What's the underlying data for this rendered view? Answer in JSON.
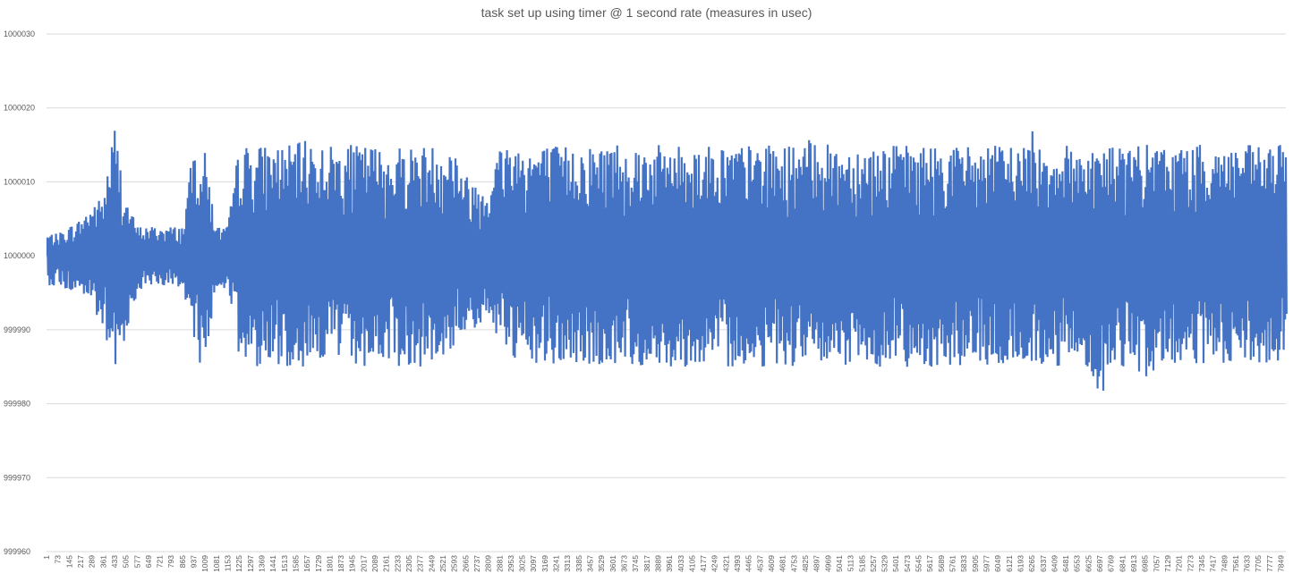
{
  "chart_data": {
    "type": "line",
    "title": "task set up using timer @ 1 second rate (measures in usec)",
    "xlabel": "",
    "ylabel": "",
    "ylim": [
      999960,
      1000030
    ],
    "yticks": [
      999960,
      999970,
      999980,
      999990,
      1000000,
      1000010,
      1000020,
      1000030
    ],
    "y_gridlines": true,
    "legend": "none",
    "line_color": "#4472C4",
    "x_tick_labels": [
      "1",
      "73",
      "145",
      "217",
      "289",
      "361",
      "433",
      "505",
      "577",
      "649",
      "721",
      "793",
      "865",
      "937",
      "1009",
      "1081",
      "1153",
      "1225",
      "1297",
      "1369",
      "1441",
      "1513",
      "1585",
      "1657",
      "1729",
      "1801",
      "1873",
      "1945",
      "2017",
      "2089",
      "2161",
      "2233",
      "2305",
      "2377",
      "2449",
      "2521",
      "2593",
      "2665",
      "2737",
      "2809",
      "2881",
      "2953",
      "3025",
      "3097",
      "3169",
      "3241",
      "3313",
      "3385",
      "3457",
      "3529",
      "3601",
      "3673",
      "3745",
      "3817",
      "3889",
      "3961",
      "4033",
      "4105",
      "4177",
      "4249",
      "4321",
      "4393",
      "4465",
      "4537",
      "4609",
      "4681",
      "4753",
      "4825",
      "4897",
      "4969",
      "5041",
      "5113",
      "5185",
      "5257",
      "5329",
      "5401",
      "5473",
      "5545",
      "5617",
      "5689",
      "5761",
      "5833",
      "5905",
      "5977",
      "6049",
      "6121",
      "6193",
      "6265",
      "6337",
      "6409",
      "6481",
      "6553",
      "6625",
      "6697",
      "6769",
      "6841",
      "6913",
      "6985",
      "7057",
      "7129",
      "7201",
      "7273",
      "7345",
      "7417",
      "7489",
      "7561",
      "7633",
      "7705",
      "7777",
      "7849"
    ],
    "x": [
      1,
      73,
      145,
      217,
      289,
      361,
      433,
      505,
      577,
      649,
      721,
      793,
      865,
      937,
      1009,
      1081,
      1153,
      1225,
      1297,
      1369,
      1441,
      1513,
      1585,
      1657,
      1729,
      1801,
      1873,
      1945,
      2017,
      2089,
      2161,
      2233,
      2305,
      2377,
      2449,
      2521,
      2593,
      2665,
      2737,
      2809,
      2881,
      2953,
      3025,
      3097,
      3169,
      3241,
      3313,
      3385,
      3457,
      3529,
      3601,
      3673,
      3745,
      3817,
      3889,
      3961,
      4033,
      4105,
      4177,
      4249,
      4321,
      4393,
      4465,
      4537,
      4609,
      4681,
      4753,
      4825,
      4897,
      4969,
      5041,
      5113,
      5185,
      5257,
      5329,
      5401,
      5473,
      5545,
      5617,
      5689,
      5761,
      5833,
      5905,
      5977,
      6049,
      6121,
      6193,
      6265,
      6337,
      6409,
      6481,
      6553,
      6625,
      6697,
      6769,
      6841,
      6913,
      6985,
      7057,
      7129,
      7201,
      7273,
      7345,
      7417,
      7489,
      7561,
      7633,
      7705,
      7777,
      7849
    ],
    "series": [
      {
        "y_max": [
          1000003,
          1000003,
          1000004,
          1000005,
          1000007,
          1000008,
          1000018,
          1000008,
          1000004,
          1000004,
          1000004,
          1000004,
          1000004,
          1000015,
          1000014,
          1000004,
          1000004,
          1000015,
          1000015,
          1000015,
          1000015,
          1000015,
          1000015,
          1000016,
          1000015,
          1000015,
          1000015,
          1000015,
          1000015,
          1000015,
          1000014,
          1000015,
          1000015,
          1000015,
          1000015,
          1000015,
          1000015,
          1000011,
          1000010,
          1000010,
          1000015,
          1000016,
          1000015,
          1000015,
          1000015,
          1000015,
          1000015,
          1000015,
          1000015,
          1000015,
          1000016,
          1000015,
          1000015,
          1000015,
          1000015,
          1000015,
          1000015,
          1000015,
          1000015,
          1000015,
          1000015,
          1000015,
          1000015,
          1000015,
          1000015,
          1000015,
          1000015,
          1000015,
          1000017,
          1000015,
          1000015,
          1000015,
          1000015,
          1000015,
          1000015,
          1000015,
          1000015,
          1000015,
          1000015,
          1000015,
          1000015,
          1000015,
          1000015,
          1000015,
          1000015,
          1000015,
          1000015,
          1000017,
          1000015,
          1000015,
          1000015,
          1000015,
          1000015,
          1000015,
          1000015,
          1000015,
          1000015,
          1000015,
          1000015,
          1000015,
          1000015,
          1000015,
          1000015,
          1000015,
          1000015,
          1000015,
          1000015,
          1000015,
          1000015,
          1000015
        ],
        "y_min": [
          999996,
          999996,
          999995,
          999995,
          999993,
          999989,
          999983,
          999990,
          999995,
          999996,
          999996,
          999996,
          999995,
          999985,
          999986,
          999995,
          999996,
          999985,
          999985,
          999985,
          999985,
          999985,
          999985,
          999985,
          999985,
          999988,
          999985,
          999985,
          999985,
          999985,
          999986,
          999985,
          999985,
          999985,
          999985,
          999985,
          999988,
          999990,
          999990,
          999990,
          999989,
          999985,
          999985,
          999985,
          999985,
          999985,
          999985,
          999985,
          999985,
          999985,
          999985,
          999985,
          999985,
          999985,
          999985,
          999985,
          999985,
          999985,
          999985,
          999985,
          999985,
          999985,
          999985,
          999985,
          999985,
          999985,
          999985,
          999985,
          999985,
          999985,
          999985,
          999985,
          999985,
          999985,
          999985,
          999985,
          999985,
          999985,
          999985,
          999985,
          999985,
          999985,
          999985,
          999985,
          999985,
          999985,
          999985,
          999985,
          999985,
          999985,
          999985,
          999985,
          999985,
          999980,
          999985,
          999985,
          999985,
          999983,
          999985,
          999985,
          999985,
          999985,
          999985,
          999985,
          999985,
          999985,
          999985,
          999985,
          999985,
          999985
        ]
      }
    ]
  }
}
